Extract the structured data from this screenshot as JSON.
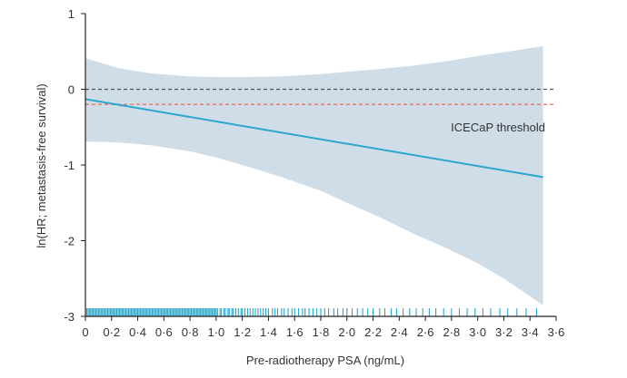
{
  "chart_data": {
    "type": "line",
    "title": "",
    "xlabel": "Pre-radiotherapy PSA (ng/mL)",
    "ylabel": "ln(HR; metastasis-free survival)",
    "xlim": [
      0,
      3.6
    ],
    "ylim": [
      -3,
      1
    ],
    "x_ticks": [
      "0",
      "0·2",
      "0·4",
      "0·6",
      "0·8",
      "1·0",
      "1·2",
      "1·4",
      "1·6",
      "1·8",
      "2·0",
      "2·2",
      "2·4",
      "2·6",
      "2·8",
      "3·0",
      "3·2",
      "3·4",
      "3·6"
    ],
    "x_tick_values": [
      0,
      0.2,
      0.4,
      0.6,
      0.8,
      1.0,
      1.2,
      1.4,
      1.6,
      1.8,
      2.0,
      2.2,
      2.4,
      2.6,
      2.8,
      3.0,
      3.2,
      3.4,
      3.6
    ],
    "y_ticks": [
      "1",
      "0",
      "-1",
      "-2",
      "-3"
    ],
    "y_tick_values": [
      1,
      0,
      -1,
      -2,
      -3
    ],
    "series": [
      {
        "x": [
          0,
          3.5
        ],
        "y": [
          -0.13,
          -1.16
        ],
        "color": "#2aa7cc"
      }
    ],
    "confidence_band": {
      "x": [
        0,
        0.25,
        0.5,
        0.8,
        1.0,
        1.2,
        1.5,
        1.8,
        2.0,
        2.2,
        2.5,
        2.8,
        3.0,
        3.2,
        3.5
      ],
      "upper": [
        0.41,
        0.28,
        0.21,
        0.17,
        0.16,
        0.16,
        0.17,
        0.2,
        0.23,
        0.26,
        0.31,
        0.38,
        0.44,
        0.49,
        0.57
      ],
      "lower": [
        -0.69,
        -0.7,
        -0.74,
        -0.82,
        -0.9,
        -1.0,
        -1.16,
        -1.34,
        -1.5,
        -1.65,
        -1.9,
        -2.13,
        -2.3,
        -2.5,
        -2.85
      ],
      "color": "#cfdde8"
    },
    "reference_lines": [
      {
        "y": 0,
        "style": "dashed",
        "color": "#555555"
      },
      {
        "y": -0.2,
        "style": "dashed",
        "color": "#e8756b",
        "label": "ICECaP threshold"
      }
    ],
    "rug": {
      "color": "#2aa7cc",
      "x": [
        0.01,
        0.02,
        0.03,
        0.04,
        0.05,
        0.06,
        0.07,
        0.08,
        0.09,
        0.1,
        0.11,
        0.12,
        0.13,
        0.14,
        0.15,
        0.16,
        0.17,
        0.18,
        0.19,
        0.2,
        0.21,
        0.22,
        0.23,
        0.24,
        0.25,
        0.26,
        0.27,
        0.28,
        0.29,
        0.3,
        0.31,
        0.32,
        0.33,
        0.34,
        0.35,
        0.36,
        0.37,
        0.38,
        0.39,
        0.4,
        0.41,
        0.42,
        0.43,
        0.44,
        0.45,
        0.46,
        0.47,
        0.48,
        0.49,
        0.5,
        0.51,
        0.52,
        0.53,
        0.54,
        0.55,
        0.56,
        0.57,
        0.58,
        0.59,
        0.6,
        0.61,
        0.62,
        0.63,
        0.64,
        0.65,
        0.66,
        0.67,
        0.68,
        0.69,
        0.7,
        0.71,
        0.72,
        0.73,
        0.74,
        0.75,
        0.76,
        0.77,
        0.78,
        0.79,
        0.8,
        0.81,
        0.82,
        0.83,
        0.84,
        0.85,
        0.86,
        0.87,
        0.88,
        0.89,
        0.9,
        0.91,
        0.92,
        0.93,
        0.94,
        0.95,
        0.96,
        0.97,
        0.98,
        0.99,
        1.0,
        1.01,
        1.03,
        1.04,
        1.06,
        1.07,
        1.09,
        1.1,
        1.12,
        1.13,
        1.15,
        1.17,
        1.19,
        1.2,
        1.22,
        1.24,
        1.26,
        1.28,
        1.3,
        1.32,
        1.34,
        1.36,
        1.38,
        1.4,
        1.43,
        1.45,
        1.47,
        1.5,
        1.52,
        1.55,
        1.58,
        1.6,
        1.63,
        1.66,
        1.68,
        1.71,
        1.74,
        1.77,
        1.8,
        1.83,
        1.86,
        1.9,
        1.93,
        1.97,
        2.0,
        2.04,
        2.08,
        2.12,
        2.16,
        2.2,
        2.25,
        2.29,
        2.34,
        2.38,
        2.43,
        2.48,
        2.53,
        2.58,
        2.63,
        2.68,
        2.74,
        2.8,
        2.86,
        2.92,
        2.98,
        3.04,
        3.1,
        3.17,
        3.23,
        3.3,
        3.37,
        3.45
      ]
    }
  }
}
